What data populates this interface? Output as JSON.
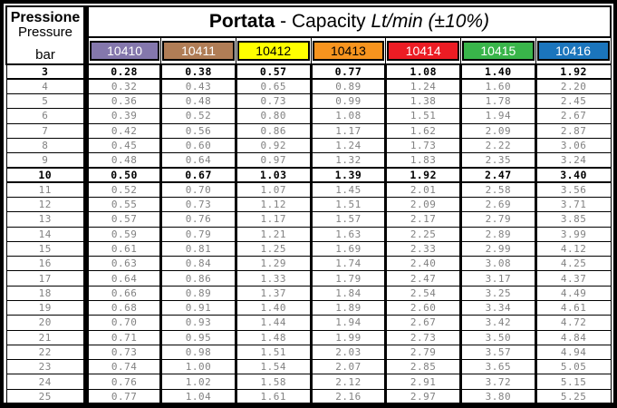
{
  "header": {
    "pressure_label_it": "Pressione",
    "pressure_label_en": "Pressure",
    "pressure_unit": "bar",
    "title_bold": "Portata",
    "title_mid": " - Capacity ",
    "title_italic": "Lt/min (±10%)"
  },
  "models": [
    {
      "code": "10410",
      "color": "#8477AC",
      "text_color": "#FFFFFF"
    },
    {
      "code": "10411",
      "color": "#B07D56",
      "text_color": "#FFFFFF"
    },
    {
      "code": "10412",
      "color": "#FFFF00",
      "text_color": "#000000"
    },
    {
      "code": "10413",
      "color": "#F7941E",
      "text_color": "#000000"
    },
    {
      "code": "10414",
      "color": "#EC1C24",
      "text_color": "#FFFFFF"
    },
    {
      "code": "10415",
      "color": "#39B54A",
      "text_color": "#FFFFFF"
    },
    {
      "code": "10416",
      "color": "#1B75BC",
      "text_color": "#FFFFFF"
    }
  ],
  "rows": [
    {
      "bar": "3",
      "bold": true,
      "values": [
        "0.28",
        "0.38",
        "0.57",
        "0.77",
        "1.08",
        "1.40",
        "1.92"
      ]
    },
    {
      "bar": "4",
      "bold": false,
      "values": [
        "0.32",
        "0.43",
        "0.65",
        "0.89",
        "1.24",
        "1.60",
        "2.20"
      ]
    },
    {
      "bar": "5",
      "bold": false,
      "values": [
        "0.36",
        "0.48",
        "0.73",
        "0.99",
        "1.38",
        "1.78",
        "2.45"
      ]
    },
    {
      "bar": "6",
      "bold": false,
      "values": [
        "0.39",
        "0.52",
        "0.80",
        "1.08",
        "1.51",
        "1.94",
        "2.67"
      ]
    },
    {
      "bar": "7",
      "bold": false,
      "values": [
        "0.42",
        "0.56",
        "0.86",
        "1.17",
        "1.62",
        "2.09",
        "2.87"
      ]
    },
    {
      "bar": "8",
      "bold": false,
      "values": [
        "0.45",
        "0.60",
        "0.92",
        "1.24",
        "1.73",
        "2.22",
        "3.06"
      ]
    },
    {
      "bar": "9",
      "bold": false,
      "values": [
        "0.48",
        "0.64",
        "0.97",
        "1.32",
        "1.83",
        "2.35",
        "3.24"
      ]
    },
    {
      "bar": "10",
      "bold": true,
      "values": [
        "0.50",
        "0.67",
        "1.03",
        "1.39",
        "1.92",
        "2.47",
        "3.40"
      ]
    },
    {
      "bar": "11",
      "bold": false,
      "values": [
        "0.52",
        "0.70",
        "1.07",
        "1.45",
        "2.01",
        "2.58",
        "3.56"
      ]
    },
    {
      "bar": "12",
      "bold": false,
      "values": [
        "0.55",
        "0.73",
        "1.12",
        "1.51",
        "2.09",
        "2.69",
        "3.71"
      ]
    },
    {
      "bar": "13",
      "bold": false,
      "values": [
        "0.57",
        "0.76",
        "1.17",
        "1.57",
        "2.17",
        "2.79",
        "3.85"
      ]
    },
    {
      "bar": "14",
      "bold": false,
      "values": [
        "0.59",
        "0.79",
        "1.21",
        "1.63",
        "2.25",
        "2.89",
        "3.99"
      ]
    },
    {
      "bar": "15",
      "bold": false,
      "values": [
        "0.61",
        "0.81",
        "1.25",
        "1.69",
        "2.33",
        "2.99",
        "4.12"
      ]
    },
    {
      "bar": "16",
      "bold": false,
      "values": [
        "0.63",
        "0.84",
        "1.29",
        "1.74",
        "2.40",
        "3.08",
        "4.25"
      ]
    },
    {
      "bar": "17",
      "bold": false,
      "values": [
        "0.64",
        "0.86",
        "1.33",
        "1.79",
        "2.47",
        "3.17",
        "4.37"
      ]
    },
    {
      "bar": "18",
      "bold": false,
      "values": [
        "0.66",
        "0.89",
        "1.37",
        "1.84",
        "2.54",
        "3.25",
        "4.49"
      ]
    },
    {
      "bar": "19",
      "bold": false,
      "values": [
        "0.68",
        "0.91",
        "1.40",
        "1.89",
        "2.60",
        "3.34",
        "4.61"
      ]
    },
    {
      "bar": "20",
      "bold": false,
      "values": [
        "0.70",
        "0.93",
        "1.44",
        "1.94",
        "2.67",
        "3.42",
        "4.72"
      ]
    },
    {
      "bar": "21",
      "bold": false,
      "values": [
        "0.71",
        "0.95",
        "1.48",
        "1.99",
        "2.73",
        "3.50",
        "4.84"
      ]
    },
    {
      "bar": "22",
      "bold": false,
      "values": [
        "0.73",
        "0.98",
        "1.51",
        "2.03",
        "2.79",
        "3.57",
        "4.94"
      ]
    },
    {
      "bar": "23",
      "bold": false,
      "values": [
        "0.74",
        "1.00",
        "1.54",
        "2.07",
        "2.85",
        "3.65",
        "5.05"
      ]
    },
    {
      "bar": "24",
      "bold": false,
      "values": [
        "0.76",
        "1.02",
        "1.58",
        "2.12",
        "2.91",
        "3.72",
        "5.15"
      ]
    },
    {
      "bar": "25",
      "bold": false,
      "values": [
        "0.77",
        "1.04",
        "1.61",
        "2.16",
        "2.97",
        "3.80",
        "5.25"
      ]
    }
  ]
}
